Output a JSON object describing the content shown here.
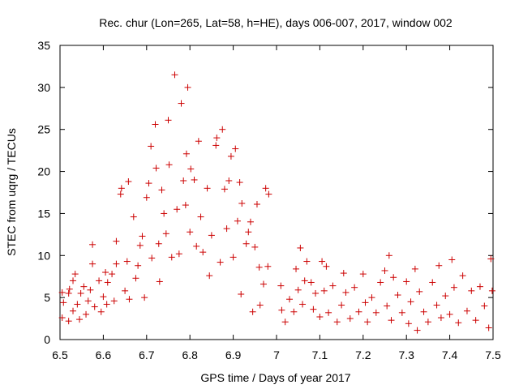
{
  "chart_data": {
    "type": "scatter",
    "title": "Rec. chur (Lon=265, Lat=58, h=HE), days 006-007, 2017, window 002",
    "xlabel": "GPS time / Days of year 2017",
    "ylabel": "STEC from uqrg / TECUs",
    "xlim": [
      6.5,
      7.5
    ],
    "ylim": [
      0,
      35
    ],
    "x_ticks": [
      "6.5",
      "6.6",
      "6.7",
      "6.8",
      "6.9",
      "7",
      "7.1",
      "7.2",
      "7.3",
      "7.4",
      "7.5"
    ],
    "y_ticks": [
      "0",
      "5",
      "10",
      "15",
      "20",
      "25",
      "30",
      "35"
    ],
    "grid": false,
    "marker": "+",
    "color": "#cc0000",
    "series": [
      {
        "points": [
          [
            6.505,
            2.6
          ],
          [
            6.505,
            5.6
          ],
          [
            6.508,
            4.4
          ],
          [
            6.52,
            2.2
          ],
          [
            6.52,
            5.5
          ],
          [
            6.522,
            6.0
          ],
          [
            6.53,
            3.4
          ],
          [
            6.53,
            7.0
          ],
          [
            6.535,
            7.8
          ],
          [
            6.54,
            4.2
          ],
          [
            6.545,
            2.4
          ],
          [
            6.548,
            5.5
          ],
          [
            6.555,
            6.3
          ],
          [
            6.56,
            3.0
          ],
          [
            6.565,
            4.6
          ],
          [
            6.57,
            5.9
          ],
          [
            6.575,
            9.0
          ],
          [
            6.575,
            11.3
          ],
          [
            6.58,
            3.9
          ],
          [
            6.59,
            7.0
          ],
          [
            6.595,
            3.3
          ],
          [
            6.6,
            5.1
          ],
          [
            6.605,
            8.0
          ],
          [
            6.608,
            4.2
          ],
          [
            6.61,
            6.8
          ],
          [
            6.62,
            7.8
          ],
          [
            6.625,
            4.6
          ],
          [
            6.63,
            9.0
          ],
          [
            6.63,
            11.7
          ],
          [
            6.64,
            17.3
          ],
          [
            6.642,
            18.0
          ],
          [
            6.65,
            5.8
          ],
          [
            6.655,
            9.3
          ],
          [
            6.658,
            18.8
          ],
          [
            6.66,
            4.8
          ],
          [
            6.67,
            14.6
          ],
          [
            6.675,
            7.3
          ],
          [
            6.68,
            8.8
          ],
          [
            6.685,
            11.2
          ],
          [
            6.69,
            12.3
          ],
          [
            6.695,
            5.0
          ],
          [
            6.7,
            16.9
          ],
          [
            6.705,
            18.6
          ],
          [
            6.71,
            23.0
          ],
          [
            6.712,
            9.7
          ],
          [
            6.72,
            25.6
          ],
          [
            6.722,
            20.4
          ],
          [
            6.728,
            11.4
          ],
          [
            6.73,
            6.9
          ],
          [
            6.735,
            17.8
          ],
          [
            6.74,
            15.0
          ],
          [
            6.745,
            12.6
          ],
          [
            6.75,
            26.1
          ],
          [
            6.752,
            20.8
          ],
          [
            6.758,
            9.8
          ],
          [
            6.765,
            31.5
          ],
          [
            6.77,
            15.5
          ],
          [
            6.775,
            10.2
          ],
          [
            6.78,
            28.1
          ],
          [
            6.785,
            18.9
          ],
          [
            6.79,
            16.0
          ],
          [
            6.792,
            22.1
          ],
          [
            6.795,
            30.0
          ],
          [
            6.8,
            12.8
          ],
          [
            6.802,
            20.3
          ],
          [
            6.81,
            19.0
          ],
          [
            6.815,
            11.1
          ],
          [
            6.82,
            23.6
          ],
          [
            6.825,
            14.6
          ],
          [
            6.83,
            10.4
          ],
          [
            6.84,
            18.0
          ],
          [
            6.845,
            7.6
          ],
          [
            6.85,
            12.4
          ],
          [
            6.86,
            23.1
          ],
          [
            6.862,
            24.0
          ],
          [
            6.87,
            9.2
          ],
          [
            6.875,
            25.0
          ],
          [
            6.88,
            17.9
          ],
          [
            6.885,
            13.2
          ],
          [
            6.89,
            18.9
          ],
          [
            6.895,
            21.8
          ],
          [
            6.9,
            9.8
          ],
          [
            6.905,
            22.7
          ],
          [
            6.91,
            14.1
          ],
          [
            6.915,
            18.7
          ],
          [
            6.918,
            5.4
          ],
          [
            6.92,
            16.2
          ],
          [
            6.93,
            11.4
          ],
          [
            6.935,
            12.8
          ],
          [
            6.94,
            14.0
          ],
          [
            6.945,
            3.3
          ],
          [
            6.95,
            11.0
          ],
          [
            6.955,
            16.1
          ],
          [
            6.96,
            8.6
          ],
          [
            6.962,
            4.1
          ],
          [
            6.97,
            6.6
          ],
          [
            6.975,
            18.0
          ],
          [
            6.98,
            8.7
          ],
          [
            6.982,
            17.3
          ],
          [
            7.01,
            6.4
          ],
          [
            7.012,
            3.5
          ],
          [
            7.02,
            2.1
          ],
          [
            7.03,
            4.8
          ],
          [
            7.04,
            3.3
          ],
          [
            7.045,
            8.4
          ],
          [
            7.05,
            5.9
          ],
          [
            7.055,
            10.9
          ],
          [
            7.06,
            4.2
          ],
          [
            7.065,
            7.0
          ],
          [
            7.07,
            9.3
          ],
          [
            7.08,
            6.8
          ],
          [
            7.085,
            3.6
          ],
          [
            7.09,
            5.5
          ],
          [
            7.1,
            2.7
          ],
          [
            7.105,
            9.3
          ],
          [
            7.11,
            5.8
          ],
          [
            7.115,
            8.7
          ],
          [
            7.12,
            3.2
          ],
          [
            7.13,
            6.4
          ],
          [
            7.14,
            2.1
          ],
          [
            7.15,
            4.1
          ],
          [
            7.155,
            7.9
          ],
          [
            7.16,
            5.6
          ],
          [
            7.17,
            2.5
          ],
          [
            7.18,
            6.2
          ],
          [
            7.19,
            3.3
          ],
          [
            7.2,
            7.8
          ],
          [
            7.205,
            4.4
          ],
          [
            7.21,
            2.1
          ],
          [
            7.22,
            5.0
          ],
          [
            7.23,
            3.2
          ],
          [
            7.24,
            6.8
          ],
          [
            7.25,
            8.2
          ],
          [
            7.255,
            4.0
          ],
          [
            7.26,
            10.0
          ],
          [
            7.265,
            2.3
          ],
          [
            7.27,
            7.4
          ],
          [
            7.28,
            5.3
          ],
          [
            7.29,
            3.2
          ],
          [
            7.3,
            6.9
          ],
          [
            7.305,
            1.9
          ],
          [
            7.31,
            4.5
          ],
          [
            7.32,
            8.4
          ],
          [
            7.325,
            1.1
          ],
          [
            7.33,
            5.7
          ],
          [
            7.34,
            3.3
          ],
          [
            7.35,
            2.1
          ],
          [
            7.36,
            6.8
          ],
          [
            7.37,
            4.1
          ],
          [
            7.375,
            8.8
          ],
          [
            7.38,
            2.6
          ],
          [
            7.39,
            5.2
          ],
          [
            7.4,
            3.0
          ],
          [
            7.405,
            9.5
          ],
          [
            7.41,
            6.2
          ],
          [
            7.42,
            2.0
          ],
          [
            7.43,
            7.6
          ],
          [
            7.44,
            3.4
          ],
          [
            7.45,
            5.8
          ],
          [
            7.46,
            2.3
          ],
          [
            7.47,
            6.3
          ],
          [
            7.48,
            4.0
          ],
          [
            7.49,
            1.4
          ],
          [
            7.495,
            9.6
          ],
          [
            7.498,
            5.8
          ]
        ]
      }
    ]
  }
}
